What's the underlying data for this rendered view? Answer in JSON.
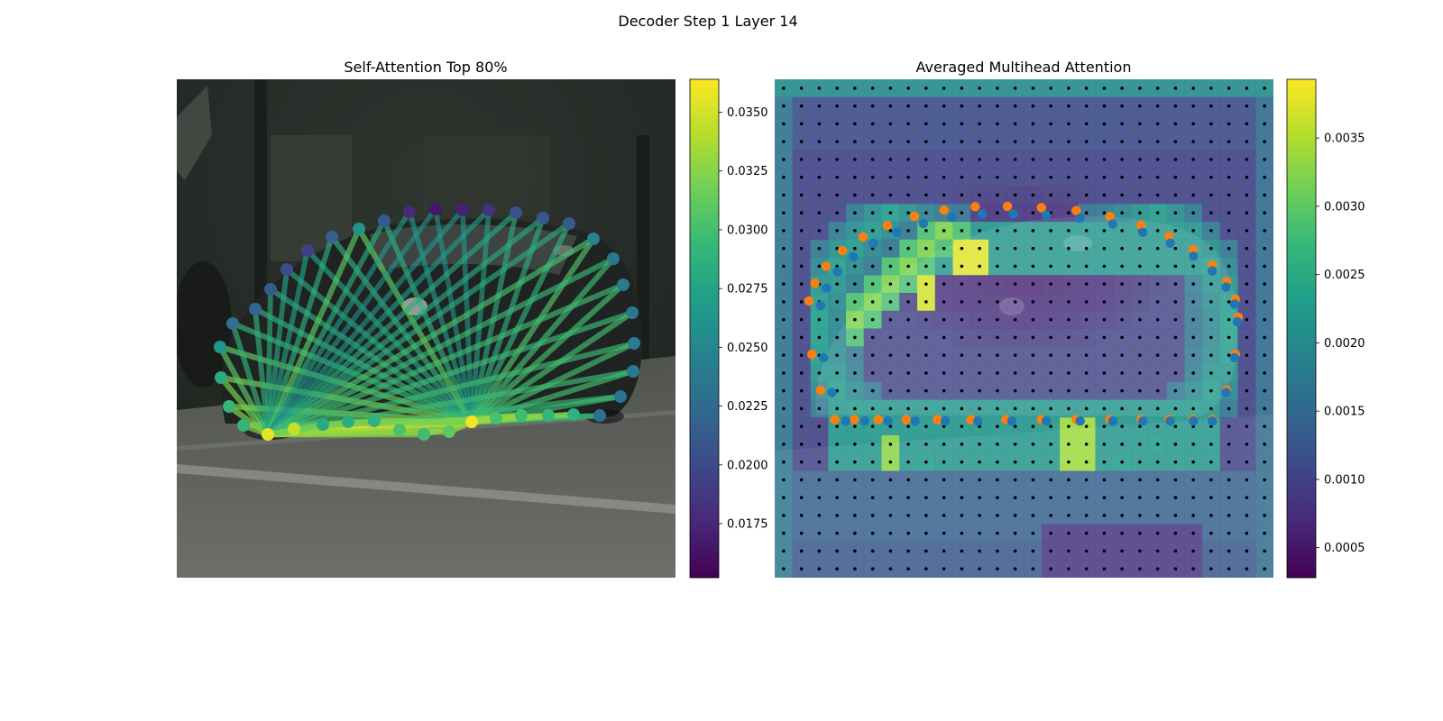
{
  "figure": {
    "suptitle": "Decoder Step 1 Layer 14"
  },
  "colors": {
    "viridis": [
      "#440154",
      "#482878",
      "#3e4989",
      "#31688e",
      "#26828e",
      "#1f9e89",
      "#35b779",
      "#6ece58",
      "#b5de2b",
      "#fde725"
    ],
    "scene_sky": "#2c322c",
    "scene_road": "#6b6e68",
    "car_body": "#252a28",
    "orange_points": "#ff7f0e",
    "blue_points": "#1f77b4",
    "grid_points": "#000000"
  },
  "chart_data": [
    {
      "type": "scatter",
      "title": "Self-Attention Top 80%",
      "colorbar": {
        "range": [
          0.0152,
          0.0364
        ],
        "ticks": [
          "0.0175",
          "0.0200",
          "0.0225",
          "0.0250",
          "0.0275",
          "0.0300",
          "0.0325",
          "0.0350"
        ]
      },
      "points": [
        {
          "x": 297,
          "y": 482,
          "v": 0.0355
        },
        {
          "x": 326,
          "y": 476,
          "v": 0.0345
        },
        {
          "x": 270,
          "y": 472,
          "v": 0.029
        },
        {
          "x": 254,
          "y": 451,
          "v": 0.0292
        },
        {
          "x": 245,
          "y": 419,
          "v": 0.0282
        },
        {
          "x": 244,
          "y": 385,
          "v": 0.0262
        },
        {
          "x": 258,
          "y": 359,
          "v": 0.0228
        },
        {
          "x": 283,
          "y": 343,
          "v": 0.0222
        },
        {
          "x": 300,
          "y": 321,
          "v": 0.0212
        },
        {
          "x": 318,
          "y": 299,
          "v": 0.02
        },
        {
          "x": 341,
          "y": 278,
          "v": 0.0193
        },
        {
          "x": 368,
          "y": 263,
          "v": 0.0218
        },
        {
          "x": 398,
          "y": 254,
          "v": 0.0262
        },
        {
          "x": 426,
          "y": 245,
          "v": 0.0213
        },
        {
          "x": 454,
          "y": 235,
          "v": 0.0176
        },
        {
          "x": 483,
          "y": 232,
          "v": 0.0165
        },
        {
          "x": 513,
          "y": 233,
          "v": 0.0172
        },
        {
          "x": 542,
          "y": 233,
          "v": 0.0182
        },
        {
          "x": 572,
          "y": 236,
          "v": 0.0206
        },
        {
          "x": 602,
          "y": 242,
          "v": 0.021
        },
        {
          "x": 631,
          "y": 248,
          "v": 0.0213
        },
        {
          "x": 658,
          "y": 265,
          "v": 0.0248
        },
        {
          "x": 680,
          "y": 287,
          "v": 0.0236
        },
        {
          "x": 691,
          "y": 316,
          "v": 0.024
        },
        {
          "x": 701,
          "y": 347,
          "v": 0.0238
        },
        {
          "x": 703,
          "y": 381,
          "v": 0.024
        },
        {
          "x": 702,
          "y": 412,
          "v": 0.0238
        },
        {
          "x": 688,
          "y": 440,
          "v": 0.0233
        },
        {
          "x": 665,
          "y": 461,
          "v": 0.023
        },
        {
          "x": 636,
          "y": 460,
          "v": 0.0288
        },
        {
          "x": 608,
          "y": 461,
          "v": 0.0292
        },
        {
          "x": 578,
          "y": 461,
          "v": 0.0298
        },
        {
          "x": 550,
          "y": 464,
          "v": 0.0302
        },
        {
          "x": 523,
          "y": 468,
          "v": 0.036
        },
        {
          "x": 498,
          "y": 479,
          "v": 0.031
        },
        {
          "x": 470,
          "y": 482,
          "v": 0.0298
        },
        {
          "x": 443,
          "y": 477,
          "v": 0.0303
        },
        {
          "x": 415,
          "y": 467,
          "v": 0.0288
        },
        {
          "x": 386,
          "y": 468,
          "v": 0.0284
        },
        {
          "x": 358,
          "y": 471,
          "v": 0.028
        }
      ]
    },
    {
      "type": "heatmap",
      "title": "Averaged Multihead Attention",
      "colorbar": {
        "range": [
          0.00028,
          0.00393
        ],
        "ticks": [
          "0.0005",
          "0.0010",
          "0.0015",
          "0.0020",
          "0.0025",
          "0.0030",
          "0.0035"
        ]
      },
      "grid": {
        "cols": 28,
        "rows": 28
      }
    }
  ]
}
